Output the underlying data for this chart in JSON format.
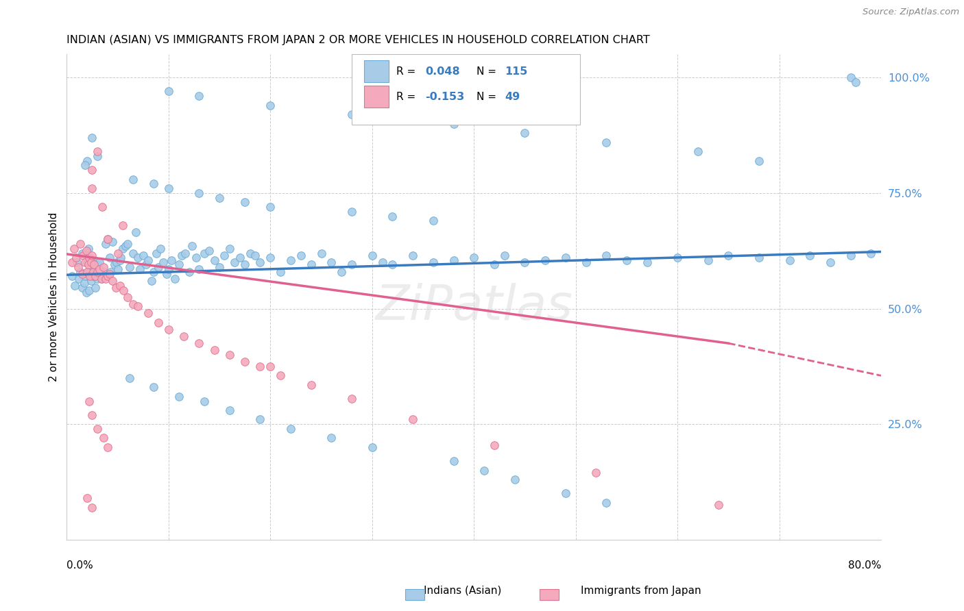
{
  "title": "INDIAN (ASIAN) VS IMMIGRANTS FROM JAPAN 2 OR MORE VEHICLES IN HOUSEHOLD CORRELATION CHART",
  "source": "Source: ZipAtlas.com",
  "ylabel": "2 or more Vehicles in Household",
  "xlim": [
    0.0,
    0.8
  ],
  "ylim": [
    0.0,
    1.05
  ],
  "ytick_vals": [
    0.0,
    0.25,
    0.5,
    0.75,
    1.0
  ],
  "ytick_labels": [
    "",
    "25.0%",
    "50.0%",
    "75.0%",
    "100.0%"
  ],
  "color_blue": "#a8cce8",
  "color_blue_edge": "#6aaad4",
  "color_blue_line": "#3a7bbf",
  "color_pink": "#f4aabc",
  "color_pink_edge": "#e07090",
  "color_pink_line": "#e06090",
  "color_tick_label": "#4a90d9",
  "color_legend_text": "#3a7bbf",
  "watermark": "ZiPatlas",
  "blue_line_start_y": 0.573,
  "blue_line_end_y": 0.623,
  "pink_line_start_y": 0.618,
  "pink_line_solid_end_x": 0.65,
  "pink_line_end_y": 0.425,
  "pink_line_dashed_end_x": 0.8,
  "pink_line_dashed_end_y": 0.355,
  "blue_x": [
    0.005,
    0.008,
    0.01,
    0.012,
    0.013,
    0.015,
    0.015,
    0.017,
    0.018,
    0.019,
    0.02,
    0.02,
    0.021,
    0.022,
    0.022,
    0.023,
    0.024,
    0.025,
    0.025,
    0.026,
    0.027,
    0.028,
    0.029,
    0.03,
    0.031,
    0.032,
    0.033,
    0.034,
    0.035,
    0.036,
    0.037,
    0.038,
    0.04,
    0.042,
    0.043,
    0.045,
    0.047,
    0.049,
    0.05,
    0.052,
    0.053,
    0.055,
    0.058,
    0.06,
    0.062,
    0.065,
    0.068,
    0.07,
    0.072,
    0.075,
    0.078,
    0.08,
    0.083,
    0.085,
    0.088,
    0.09,
    0.092,
    0.095,
    0.098,
    0.1,
    0.103,
    0.106,
    0.11,
    0.113,
    0.116,
    0.12,
    0.123,
    0.127,
    0.13,
    0.135,
    0.14,
    0.145,
    0.15,
    0.155,
    0.16,
    0.165,
    0.17,
    0.175,
    0.18,
    0.185,
    0.19,
    0.2,
    0.21,
    0.22,
    0.23,
    0.24,
    0.25,
    0.26,
    0.27,
    0.28,
    0.3,
    0.31,
    0.32,
    0.34,
    0.36,
    0.38,
    0.4,
    0.42,
    0.43,
    0.45,
    0.47,
    0.49,
    0.51,
    0.53,
    0.55,
    0.57,
    0.6,
    0.63,
    0.65,
    0.68,
    0.71,
    0.73,
    0.75,
    0.77,
    0.79
  ],
  "blue_y": [
    0.57,
    0.55,
    0.6,
    0.565,
    0.58,
    0.545,
    0.62,
    0.555,
    0.57,
    0.535,
    0.58,
    0.6,
    0.63,
    0.575,
    0.54,
    0.58,
    0.56,
    0.605,
    0.575,
    0.57,
    0.595,
    0.545,
    0.58,
    0.565,
    0.595,
    0.6,
    0.575,
    0.565,
    0.575,
    0.58,
    0.57,
    0.64,
    0.65,
    0.61,
    0.58,
    0.645,
    0.595,
    0.6,
    0.585,
    0.605,
    0.61,
    0.63,
    0.635,
    0.64,
    0.59,
    0.62,
    0.665,
    0.61,
    0.585,
    0.615,
    0.595,
    0.605,
    0.56,
    0.58,
    0.62,
    0.59,
    0.63,
    0.6,
    0.575,
    0.585,
    0.605,
    0.565,
    0.595,
    0.615,
    0.62,
    0.58,
    0.635,
    0.61,
    0.585,
    0.62,
    0.625,
    0.605,
    0.59,
    0.615,
    0.63,
    0.6,
    0.61,
    0.595,
    0.62,
    0.615,
    0.6,
    0.61,
    0.58,
    0.605,
    0.615,
    0.595,
    0.62,
    0.6,
    0.58,
    0.595,
    0.615,
    0.6,
    0.595,
    0.615,
    0.6,
    0.605,
    0.61,
    0.595,
    0.615,
    0.6,
    0.605,
    0.61,
    0.6,
    0.615,
    0.605,
    0.6,
    0.61,
    0.605,
    0.615,
    0.61,
    0.605,
    0.615,
    0.6,
    0.615,
    0.62
  ],
  "blue_y_outliers": [
    0.87,
    0.83,
    0.92,
    0.82,
    0.81,
    0.78,
    0.77,
    0.76,
    0.75,
    0.74,
    0.73,
    0.72,
    0.71,
    0.7,
    0.69,
    0.35,
    0.33,
    0.31,
    0.3,
    0.28,
    0.26,
    0.24,
    0.22,
    0.2,
    0.17,
    0.15,
    0.13,
    0.1,
    0.08,
    1.0,
    0.99,
    0.97,
    0.96,
    0.94,
    0.92,
    0.9,
    0.88,
    0.86,
    0.84,
    0.82
  ],
  "blue_x_outliers": [
    0.025,
    0.03,
    0.39,
    0.02,
    0.018,
    0.065,
    0.085,
    0.1,
    0.13,
    0.15,
    0.175,
    0.2,
    0.28,
    0.32,
    0.36,
    0.062,
    0.085,
    0.11,
    0.135,
    0.16,
    0.19,
    0.22,
    0.26,
    0.3,
    0.38,
    0.41,
    0.44,
    0.49,
    0.53,
    0.77,
    0.775,
    0.1,
    0.13,
    0.2,
    0.28,
    0.38,
    0.45,
    0.53,
    0.62,
    0.68
  ],
  "pink_x": [
    0.005,
    0.007,
    0.009,
    0.011,
    0.013,
    0.015,
    0.016,
    0.018,
    0.019,
    0.02,
    0.021,
    0.022,
    0.023,
    0.024,
    0.025,
    0.026,
    0.027,
    0.028,
    0.03,
    0.032,
    0.034,
    0.036,
    0.038,
    0.04,
    0.042,
    0.045,
    0.048,
    0.052,
    0.056,
    0.06,
    0.065,
    0.07,
    0.08,
    0.09,
    0.1,
    0.115,
    0.13,
    0.145,
    0.16,
    0.175,
    0.19,
    0.21,
    0.24,
    0.28,
    0.34,
    0.42,
    0.52,
    0.64,
    0.2
  ],
  "pink_y": [
    0.6,
    0.63,
    0.61,
    0.59,
    0.64,
    0.575,
    0.615,
    0.6,
    0.625,
    0.58,
    0.595,
    0.61,
    0.57,
    0.6,
    0.615,
    0.58,
    0.595,
    0.57,
    0.58,
    0.585,
    0.565,
    0.59,
    0.565,
    0.57,
    0.575,
    0.56,
    0.545,
    0.55,
    0.54,
    0.525,
    0.51,
    0.505,
    0.49,
    0.47,
    0.455,
    0.44,
    0.425,
    0.41,
    0.4,
    0.385,
    0.375,
    0.355,
    0.335,
    0.305,
    0.26,
    0.205,
    0.145,
    0.075,
    0.375
  ],
  "pink_y_outliers": [
    0.8,
    0.84,
    0.76,
    0.72,
    0.65,
    0.62,
    0.68,
    0.3,
    0.27,
    0.24,
    0.22,
    0.2,
    0.09,
    0.07
  ],
  "pink_x_outliers": [
    0.025,
    0.03,
    0.025,
    0.035,
    0.04,
    0.05,
    0.055,
    0.022,
    0.025,
    0.03,
    0.036,
    0.04,
    0.02,
    0.025
  ]
}
